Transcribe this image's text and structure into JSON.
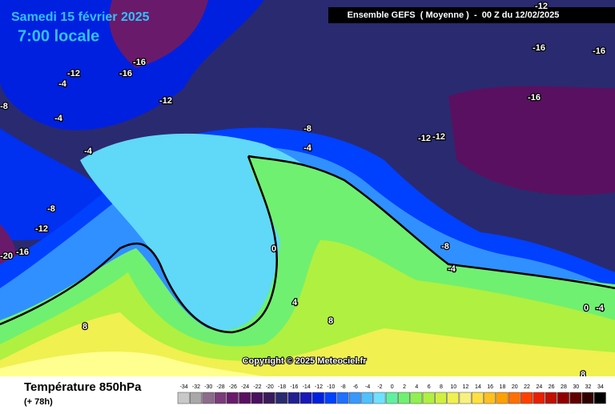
{
  "header": {
    "date": "Samedi 15 février 2025",
    "time": "7:00 locale",
    "run": "Ensemble GEFS  ( Moyenne )  -  00 Z du 12/02/2025"
  },
  "footer": {
    "title": "Température 850hPa",
    "lead": "(+ 78h)",
    "copyright": "Copyright © 2025 Meteociel.fr"
  },
  "legend": {
    "values": [
      -34,
      -32,
      -30,
      -28,
      -26,
      -24,
      -22,
      -20,
      -18,
      -16,
      -14,
      -12,
      -10,
      -8,
      -6,
      -4,
      -2,
      0,
      2,
      4,
      6,
      8,
      10,
      12,
      14,
      16,
      18,
      20,
      22,
      24,
      26,
      28,
      30,
      32,
      34
    ],
    "colors": [
      "#c8c8c8",
      "#a8a8a8",
      "#8c6c8c",
      "#7a3c7a",
      "#6a1a6a",
      "#5a1060",
      "#4a1060",
      "#3a1a5a",
      "#2a2a70",
      "#202090",
      "#1818b8",
      "#0020e0",
      "#0040ff",
      "#2070ff",
      "#3898ff",
      "#50c0ff",
      "#70e0ff",
      "#60f0a0",
      "#70f070",
      "#90f050",
      "#b0f040",
      "#d0f040",
      "#f0f050",
      "#f8f080",
      "#ffe040",
      "#ffc020",
      "#ffa000",
      "#ff7000",
      "#ff4000",
      "#e82000",
      "#c01000",
      "#900000",
      "#600000",
      "#300000",
      "#000000"
    ]
  },
  "contours": [
    "-16",
    "-16",
    "-12",
    "-4",
    "-8",
    "-4",
    "-12",
    "-4",
    "-8",
    "-4",
    "-12",
    "-12",
    "-16",
    "-16",
    "-12",
    "-16",
    "-8",
    "-12",
    "-16",
    "-20",
    "0",
    "4",
    "8",
    "8",
    "-8",
    "-4",
    "0",
    "-4",
    "8"
  ]
}
